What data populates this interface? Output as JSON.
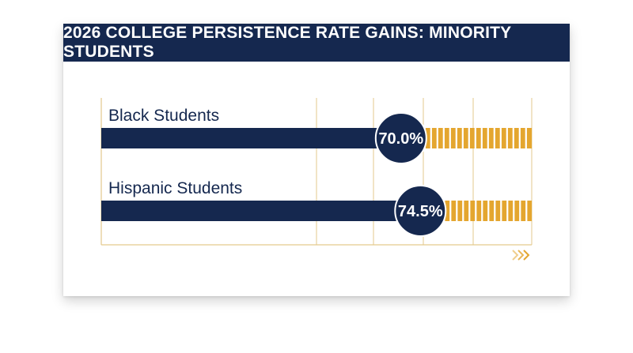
{
  "title": "2026 COLLEGE PERSISTENCE RATE GAINS: MINORITY STUDENTS",
  "colors": {
    "header": "#15284f",
    "bar": "#15284f",
    "stripe": "#e4a62f",
    "grid": "#e3c98d",
    "badge_text": "#ffffff",
    "label_text": "#15284f"
  },
  "chart_data": {
    "type": "bar",
    "orientation": "horizontal",
    "categories": [
      "Black Students",
      "Hispanic Students"
    ],
    "values": [
      70.0,
      74.5
    ],
    "data_labels": [
      "70.0%",
      "74.5%"
    ],
    "xlim": [
      0,
      100
    ],
    "grid": true
  },
  "decoration": {
    "arrow_icon": "chevron-double-right-icon"
  }
}
